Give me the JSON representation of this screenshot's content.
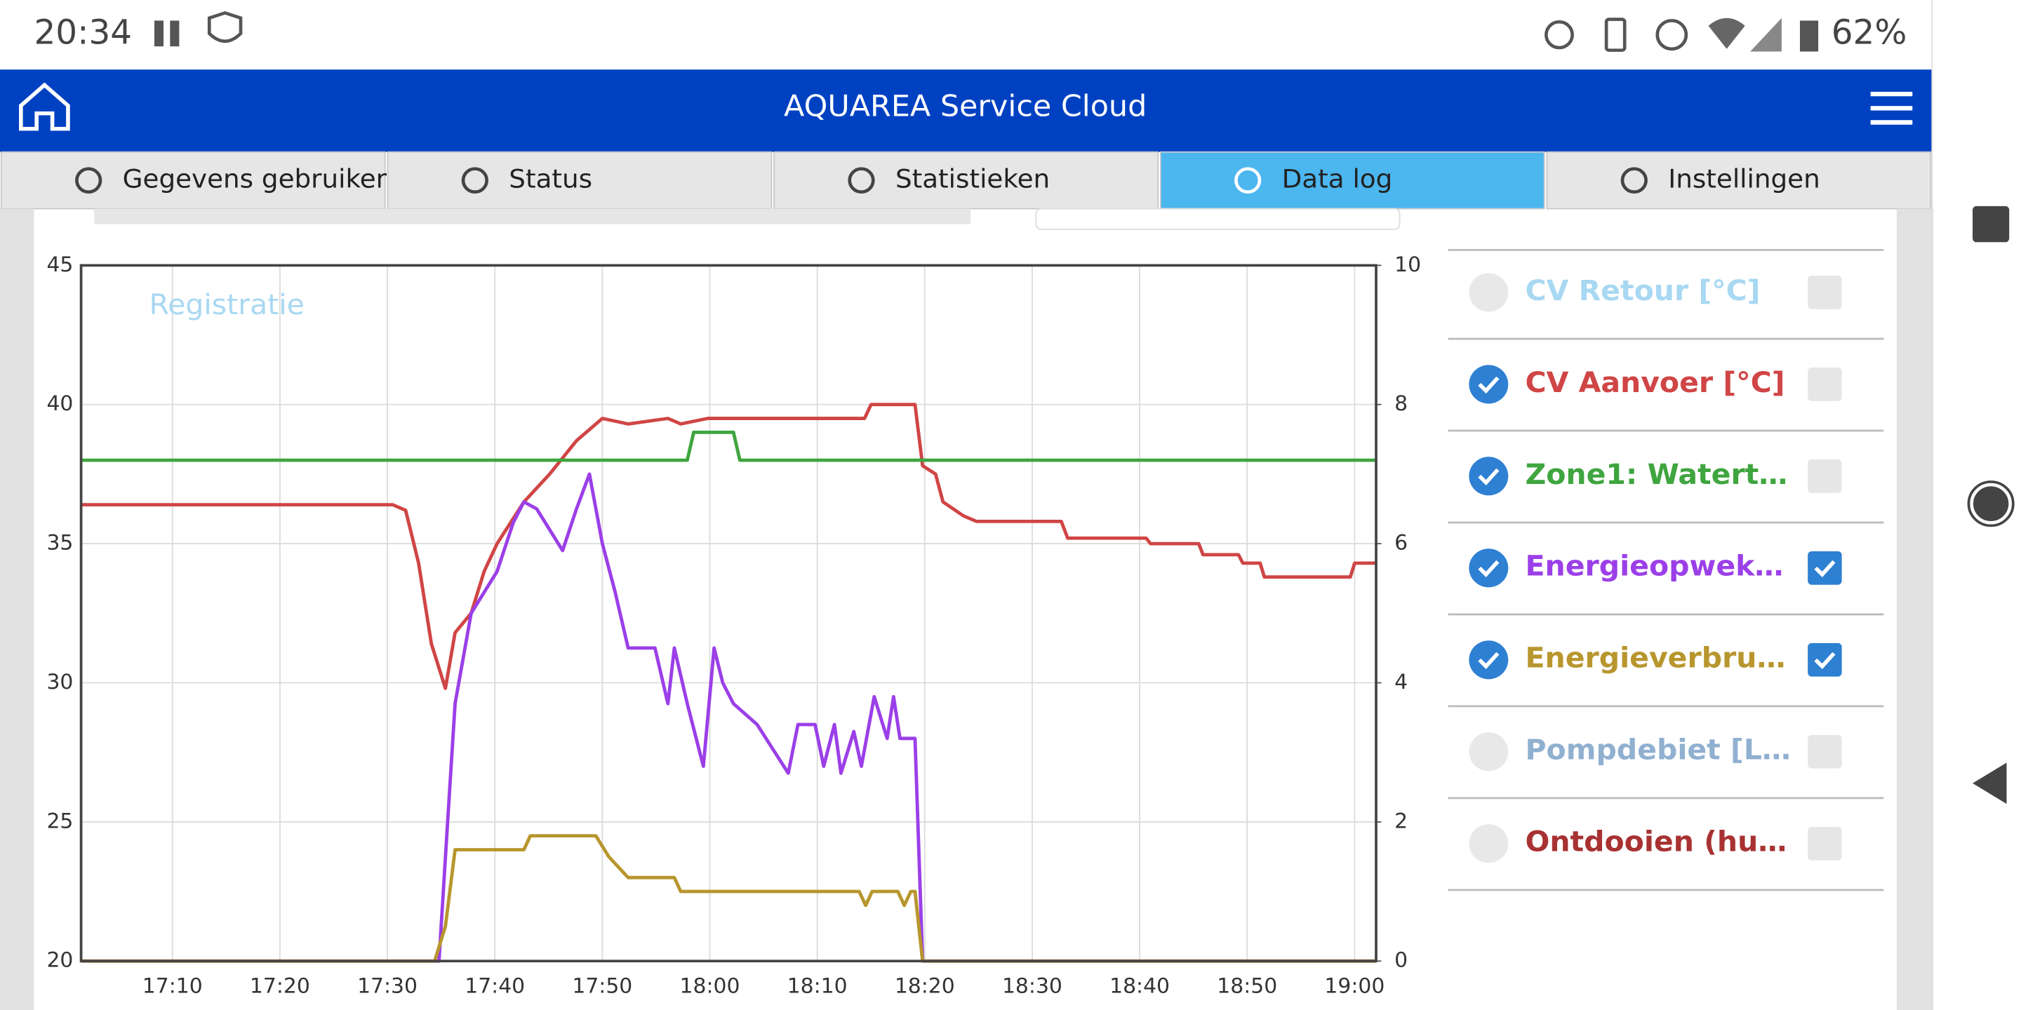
{
  "status_bar": {
    "time": "20:34",
    "battery": "62%"
  },
  "header": {
    "title": "AQUAREA Service Cloud"
  },
  "tabs": [
    {
      "label": "Gegevens gebruiker",
      "active": false
    },
    {
      "label": "Status",
      "active": false
    },
    {
      "label": "Statistieken",
      "active": false
    },
    {
      "label": "Data log",
      "active": true
    },
    {
      "label": "Instellingen",
      "active": false
    }
  ],
  "chart_data": {
    "type": "line",
    "annotation": "Registratie",
    "xlim": [
      1021.5,
      1142
    ],
    "xticks": [
      {
        "value": 1030,
        "label": "17:10"
      },
      {
        "value": 1040,
        "label": "17:20"
      },
      {
        "value": 1050,
        "label": "17:30"
      },
      {
        "value": 1060,
        "label": "17:40"
      },
      {
        "value": 1070,
        "label": "17:50"
      },
      {
        "value": 1080,
        "label": "18:00"
      },
      {
        "value": 1090,
        "label": "18:10"
      },
      {
        "value": 1100,
        "label": "18:20"
      },
      {
        "value": 1110,
        "label": "18:30"
      },
      {
        "value": 1120,
        "label": "18:40"
      },
      {
        "value": 1130,
        "label": "18:50"
      },
      {
        "value": 1140,
        "label": "19:00"
      }
    ],
    "ylim": [
      20,
      45
    ],
    "yticks": [
      20,
      25,
      30,
      35,
      40,
      45
    ],
    "y2lim": [
      0,
      10
    ],
    "y2ticks": [
      0,
      2,
      4,
      6,
      8,
      10
    ],
    "grid": true,
    "series": [
      {
        "name": "CV Retour [°C]",
        "color": "#a8d8f2",
        "visible": false,
        "x": [],
        "values": []
      },
      {
        "name": "CV Aanvoer [°C]",
        "color": "#d04545",
        "visible": true,
        "x": [
          1021.5,
          1050.5,
          1051.7,
          1052.9,
          1054.1,
          1055.4,
          1056.3,
          1057.8,
          1059,
          1060.2,
          1062.7,
          1065.1,
          1067.6,
          1070,
          1072.4,
          1076.1,
          1077.3,
          1079.8,
          1094.4,
          1095,
          1099.1,
          1099.8,
          1101,
          1101.7,
          1103.6,
          1104.8,
          1112.7,
          1113.3,
          1120.6,
          1121,
          1125.5,
          1125.9,
          1129.2,
          1129.6,
          1131.2,
          1131.6,
          1139.6,
          1140,
          1142
        ],
        "values": [
          36.4,
          36.4,
          36.2,
          34.3,
          31.4,
          29.8,
          31.8,
          32.5,
          34,
          35,
          36.5,
          37.5,
          38.7,
          39.5,
          39.3,
          39.5,
          39.3,
          39.5,
          39.5,
          40,
          40,
          37.8,
          37.5,
          36.5,
          36,
          35.8,
          35.8,
          35.2,
          35.2,
          35,
          35,
          34.6,
          34.6,
          34.3,
          34.3,
          33.8,
          33.8,
          34.3,
          34.3
        ]
      },
      {
        "name": "Zone1: Watert…",
        "color": "#3fa53f",
        "visible": true,
        "x": [
          1021.5,
          1077.9,
          1078.5,
          1082.2,
          1082.8,
          1142
        ],
        "values": [
          38,
          38,
          39,
          39,
          38,
          38
        ]
      },
      {
        "name": "Energieopwek…",
        "color": "#9b3fe8",
        "visible": true,
        "axis": "y2",
        "x": [
          1021.5,
          1054.8,
          1055.6,
          1056.3,
          1057.8,
          1059,
          1060.2,
          1061.7,
          1062.7,
          1063.9,
          1065.1,
          1066.3,
          1067.6,
          1068.8,
          1070,
          1071.2,
          1072.4,
          1074.9,
          1076.1,
          1076.7,
          1077.9,
          1079.4,
          1080.4,
          1081.2,
          1082.2,
          1084.4,
          1087.3,
          1088.2,
          1089.8,
          1090.6,
          1091.6,
          1092.2,
          1093.4,
          1094.1,
          1095.3,
          1096.5,
          1097.1,
          1097.7,
          1099.1,
          1099.8,
          1142
        ],
        "values": [
          0,
          0,
          2,
          3.7,
          5,
          5.3,
          5.6,
          6.3,
          6.6,
          6.5,
          6.2,
          5.9,
          6.5,
          7,
          6,
          5.3,
          4.5,
          4.5,
          3.7,
          4.5,
          3.7,
          2.8,
          4.5,
          4,
          3.7,
          3.4,
          2.7,
          3.4,
          3.4,
          2.8,
          3.4,
          2.7,
          3.3,
          2.8,
          3.8,
          3.2,
          3.8,
          3.2,
          3.2,
          0,
          0
        ]
      },
      {
        "name": "Energieverbru…",
        "color": "#b8962e",
        "visible": true,
        "axis": "y2",
        "x": [
          1021.5,
          1054.4,
          1055.4,
          1056.3,
          1062.7,
          1063.3,
          1069.4,
          1070.6,
          1072.4,
          1076.7,
          1077.3,
          1093.9,
          1094.5,
          1095.1,
          1097.5,
          1098.1,
          1098.7,
          1099.1,
          1099.8,
          1142
        ],
        "values": [
          0,
          0,
          0.5,
          1.6,
          1.6,
          1.8,
          1.8,
          1.5,
          1.2,
          1.2,
          1,
          1,
          0.8,
          1,
          1,
          0.8,
          1,
          1,
          0,
          0
        ]
      },
      {
        "name": "Pompdebiet [L…",
        "color": "#90b0d0",
        "visible": false,
        "x": [],
        "values": []
      },
      {
        "name": "Ontdooien (hu…",
        "color": "#a83232",
        "visible": false,
        "x": [],
        "values": []
      }
    ]
  }
}
